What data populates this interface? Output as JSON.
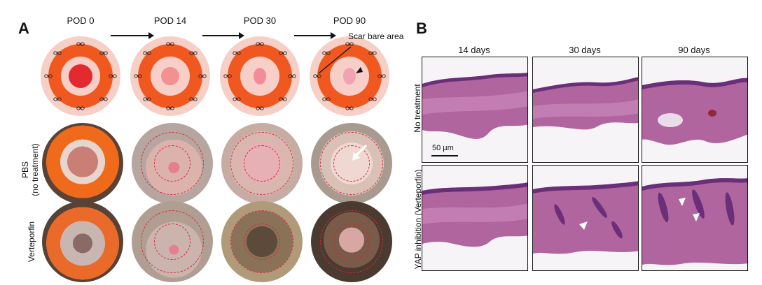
{
  "panel_a": {
    "letter": "A",
    "timepoints": [
      "POD 0",
      "POD 14",
      "POD 30",
      "POD 90"
    ],
    "annotation": "Scar bare area",
    "row_labels": {
      "pbs_line1": "PBS",
      "pbs_line2": "(no treatment)",
      "verteporfin": "Verteporfin"
    },
    "colors": {
      "outer_pink": "#f6cfc6",
      "orange_ring": "#f0581f",
      "inner_pink": "#f8cfc8",
      "wound_pod0": "#e32a2f",
      "wound_pod14": "#f29092",
      "wound_pod30": "#f48b98",
      "wound_pod90": "#f0a3b3",
      "dashed_circle": "#d8283a"
    }
  },
  "panel_b": {
    "letter": "B",
    "columns": [
      "14 days",
      "30 days",
      "90 days"
    ],
    "row_labels": {
      "no_treatment": "No treatment",
      "yap_inhibition": "YAP inhibition (Verteporfin)"
    },
    "scale_bar": "50 µm",
    "colors": {
      "tissue_purple": "#b0659f",
      "epidermis": "#6b2f7a",
      "dermis_pink": "#cf8fbf"
    }
  }
}
